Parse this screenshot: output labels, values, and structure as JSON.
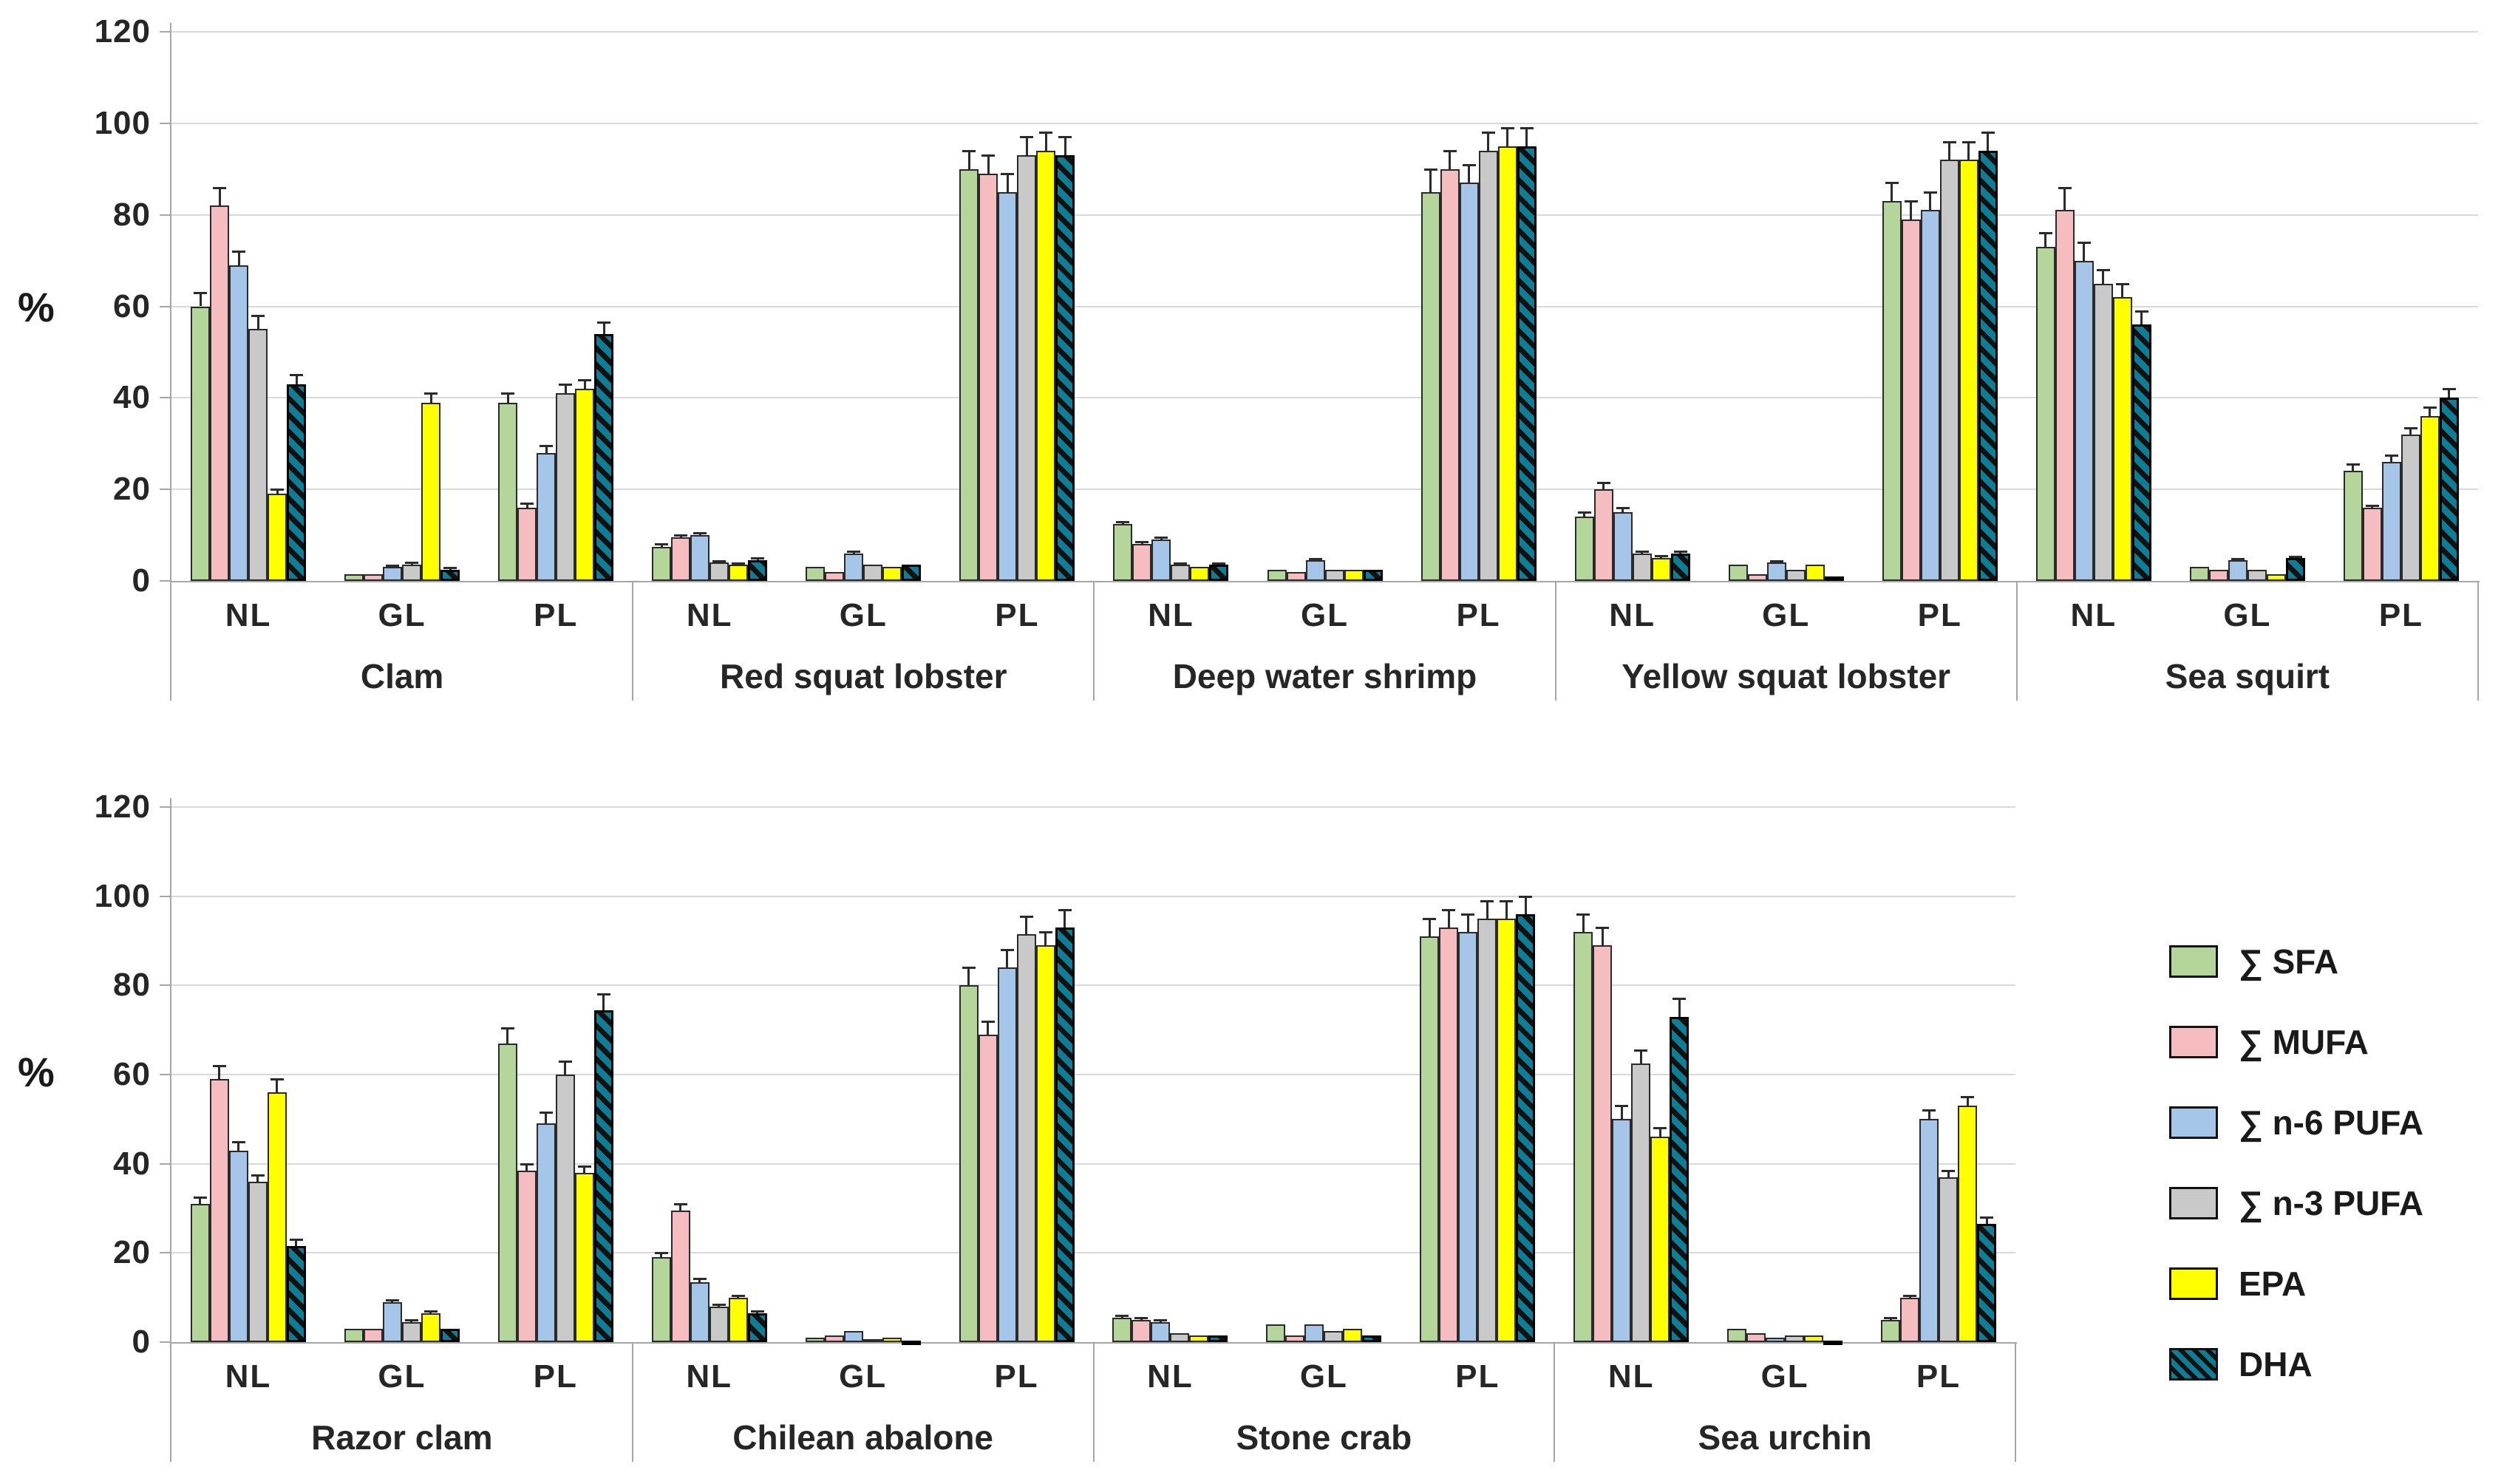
{
  "page": {
    "background": "#ffffff"
  },
  "colors": {
    "sfa": "#b5d69b",
    "mufa": "#f6bdc0",
    "n6": "#a5c6e8",
    "n3": "#c9c9c9",
    "epa": "#ffff00",
    "dha": "#0e7e96",
    "hatch_stripe": "#111111",
    "gridline": "#d9d9d9",
    "axis": "#a6a6a6",
    "text": "#262626"
  },
  "legend": {
    "items": [
      {
        "label": "∑ SFA",
        "series": "sfa",
        "hatch": false
      },
      {
        "label": "∑ MUFA",
        "series": "mufa",
        "hatch": false
      },
      {
        "label": "∑  n-6 PUFA",
        "series": "n6",
        "hatch": false
      },
      {
        "label": "∑  n-3 PUFA",
        "series": "n3",
        "hatch": false
      },
      {
        "label": "EPA",
        "series": "epa",
        "hatch": false
      },
      {
        "label": "DHA",
        "series": "dha",
        "hatch": true
      }
    ]
  },
  "chart_data": [
    {
      "type": "bar",
      "panel": "top",
      "title": "",
      "xlabel": "",
      "ylabel": "%",
      "ylim": [
        0,
        120
      ],
      "yticks": [
        0,
        20,
        40,
        60,
        80,
        100,
        120
      ],
      "grid": true,
      "legend_position": "right-of-bottom-panel",
      "series_keys": [
        "sfa",
        "mufa",
        "n6",
        "n3",
        "epa",
        "dha"
      ],
      "series_names": [
        "∑ SFA",
        "∑ MUFA",
        "∑ n-6 PUFA",
        "∑ n-3 PUFA",
        "EPA",
        "DHA"
      ],
      "group_labels": [
        "NL",
        "GL",
        "PL"
      ],
      "species": [
        {
          "name": "Clam",
          "values": {
            "NL": [
              60,
              82,
              69,
              55,
              19,
              43
            ],
            "GL": [
              1.5,
              1.5,
              3,
              3.5,
              39,
              2.5
            ],
            "PL": [
              39,
              16,
              28,
              41,
              42,
              54
            ]
          },
          "errors": {
            "NL": [
              3,
              4,
              3,
              3,
              1,
              2
            ],
            "GL": [
              0.3,
              0.3,
              0.4,
              0.5,
              2,
              0.4
            ],
            "PL": [
              2,
              1,
              1.5,
              2,
              2,
              2.5
            ]
          }
        },
        {
          "name": "Red squat lobster",
          "values": {
            "NL": [
              7.5,
              9.5,
              10,
              4,
              3.5,
              4.5
            ],
            "GL": [
              3,
              2,
              6,
              3.5,
              3,
              3.5
            ],
            "PL": [
              90,
              89,
              85,
              93,
              94,
              93
            ]
          },
          "errors": {
            "NL": [
              0.5,
              0.5,
              0.5,
              0.4,
              0.4,
              0.5
            ],
            "GL": [
              0.3,
              0.3,
              0.4,
              0.3,
              0.3,
              0.3
            ],
            "PL": [
              4,
              4,
              4,
              4,
              4,
              4
            ]
          }
        },
        {
          "name": "Deep water shrimp",
          "values": {
            "NL": [
              12.5,
              8,
              9,
              3.5,
              3,
              3.5
            ],
            "GL": [
              2.5,
              2,
              4.5,
              2.5,
              2.5,
              2.5
            ],
            "PL": [
              85,
              90,
              87,
              94,
              95,
              95
            ]
          },
          "errors": {
            "NL": [
              0.5,
              0.5,
              0.5,
              0.4,
              0.3,
              0.4
            ],
            "GL": [
              0.3,
              0.3,
              0.4,
              0.3,
              0.3,
              0.3
            ],
            "PL": [
              5,
              4,
              4,
              4,
              4,
              4
            ]
          }
        },
        {
          "name": "Yellow squat lobster",
          "values": {
            "NL": [
              14,
              20,
              15,
              6,
              5,
              6
            ],
            "GL": [
              3.5,
              1.5,
              4,
              2.5,
              3.5,
              1
            ],
            "PL": [
              83,
              79,
              81,
              92,
              92,
              94
            ]
          },
          "errors": {
            "NL": [
              1,
              1.5,
              1,
              0.5,
              0.5,
              0.5
            ],
            "GL": [
              0.3,
              0.3,
              0.4,
              0.3,
              0.3,
              0.2
            ],
            "PL": [
              4,
              4,
              4,
              4,
              4,
              4
            ]
          }
        },
        {
          "name": "Sea squirt",
          "values": {
            "NL": [
              73,
              81,
              70,
              65,
              62,
              56
            ],
            "GL": [
              3,
              2.5,
              4.5,
              2.5,
              1.5,
              5
            ],
            "PL": [
              24,
              16,
              26,
              32,
              36,
              40
            ]
          },
          "errors": {
            "NL": [
              3,
              5,
              4,
              3,
              3,
              3
            ],
            "GL": [
              0.3,
              0.3,
              0.4,
              0.3,
              0.3,
              0.4
            ],
            "PL": [
              1.5,
              0.5,
              1.5,
              1.5,
              2,
              2
            ]
          }
        }
      ]
    },
    {
      "type": "bar",
      "panel": "bottom",
      "title": "",
      "xlabel": "",
      "ylabel": "%",
      "ylim": [
        0,
        120
      ],
      "yticks": [
        0,
        20,
        40,
        60,
        80,
        100,
        120
      ],
      "grid": true,
      "series_keys": [
        "sfa",
        "mufa",
        "n6",
        "n3",
        "epa",
        "dha"
      ],
      "series_names": [
        "∑ SFA",
        "∑ MUFA",
        "∑ n-6 PUFA",
        "∑ n-3 PUFA",
        "EPA",
        "DHA"
      ],
      "group_labels": [
        "NL",
        "GL",
        "PL"
      ],
      "species": [
        {
          "name": "Razor clam",
          "values": {
            "NL": [
              31,
              59,
              43,
              36,
              56,
              21.5
            ],
            "GL": [
              3,
              3,
              9,
              4.5,
              6.5,
              3
            ],
            "PL": [
              67,
              38.5,
              49,
              60,
              38,
              74.5
            ]
          },
          "errors": {
            "NL": [
              1.5,
              3,
              2,
              1.5,
              3,
              1.5
            ],
            "GL": [
              0.3,
              0.3,
              0.5,
              0.4,
              0.4,
              0.3
            ],
            "PL": [
              3.5,
              1.5,
              2.5,
              3,
              1.5,
              3.5
            ]
          }
        },
        {
          "name": "Chilean abalone",
          "values": {
            "NL": [
              19,
              29.5,
              13.5,
              8,
              10,
              6.5
            ],
            "GL": [
              1,
              1.5,
              2.5,
              0.7,
              1,
              0.2
            ],
            "PL": [
              80,
              69,
              84,
              91.5,
              89,
              93
            ]
          },
          "errors": {
            "NL": [
              1,
              1.5,
              0.7,
              0.5,
              0.5,
              0.5
            ],
            "GL": [
              0.2,
              0.2,
              0.3,
              0.2,
              0.2,
              0.1
            ],
            "PL": [
              4,
              3,
              4,
              4,
              3,
              4
            ]
          }
        },
        {
          "name": "Stone crab",
          "values": {
            "NL": [
              5.5,
              5,
              4.5,
              2,
              1.5,
              1.5
            ],
            "GL": [
              4,
              1.5,
              4,
              2.5,
              3,
              1.5
            ],
            "PL": [
              91,
              93,
              92,
              95,
              95,
              96
            ]
          },
          "errors": {
            "NL": [
              0.4,
              0.4,
              0.4,
              0.3,
              0.2,
              0.3
            ],
            "GL": [
              0.3,
              0.2,
              0.3,
              0.3,
              0.3,
              0.2
            ],
            "PL": [
              4,
              4,
              4,
              4,
              4,
              4
            ]
          }
        },
        {
          "name": "Sea urchin",
          "values": {
            "NL": [
              92,
              89,
              50,
              62.5,
              46,
              73
            ],
            "GL": [
              3,
              2,
              1,
              1.5,
              1.5,
              0.2
            ],
            "PL": [
              5,
              10,
              50,
              37,
              53,
              26.5
            ]
          },
          "errors": {
            "NL": [
              4,
              4,
              3,
              3,
              2,
              4
            ],
            "GL": [
              0.3,
              0.2,
              0.2,
              0.2,
              0.2,
              0.1
            ],
            "PL": [
              0.5,
              0.5,
              2,
              1.5,
              2,
              1.5
            ]
          }
        }
      ]
    }
  ]
}
